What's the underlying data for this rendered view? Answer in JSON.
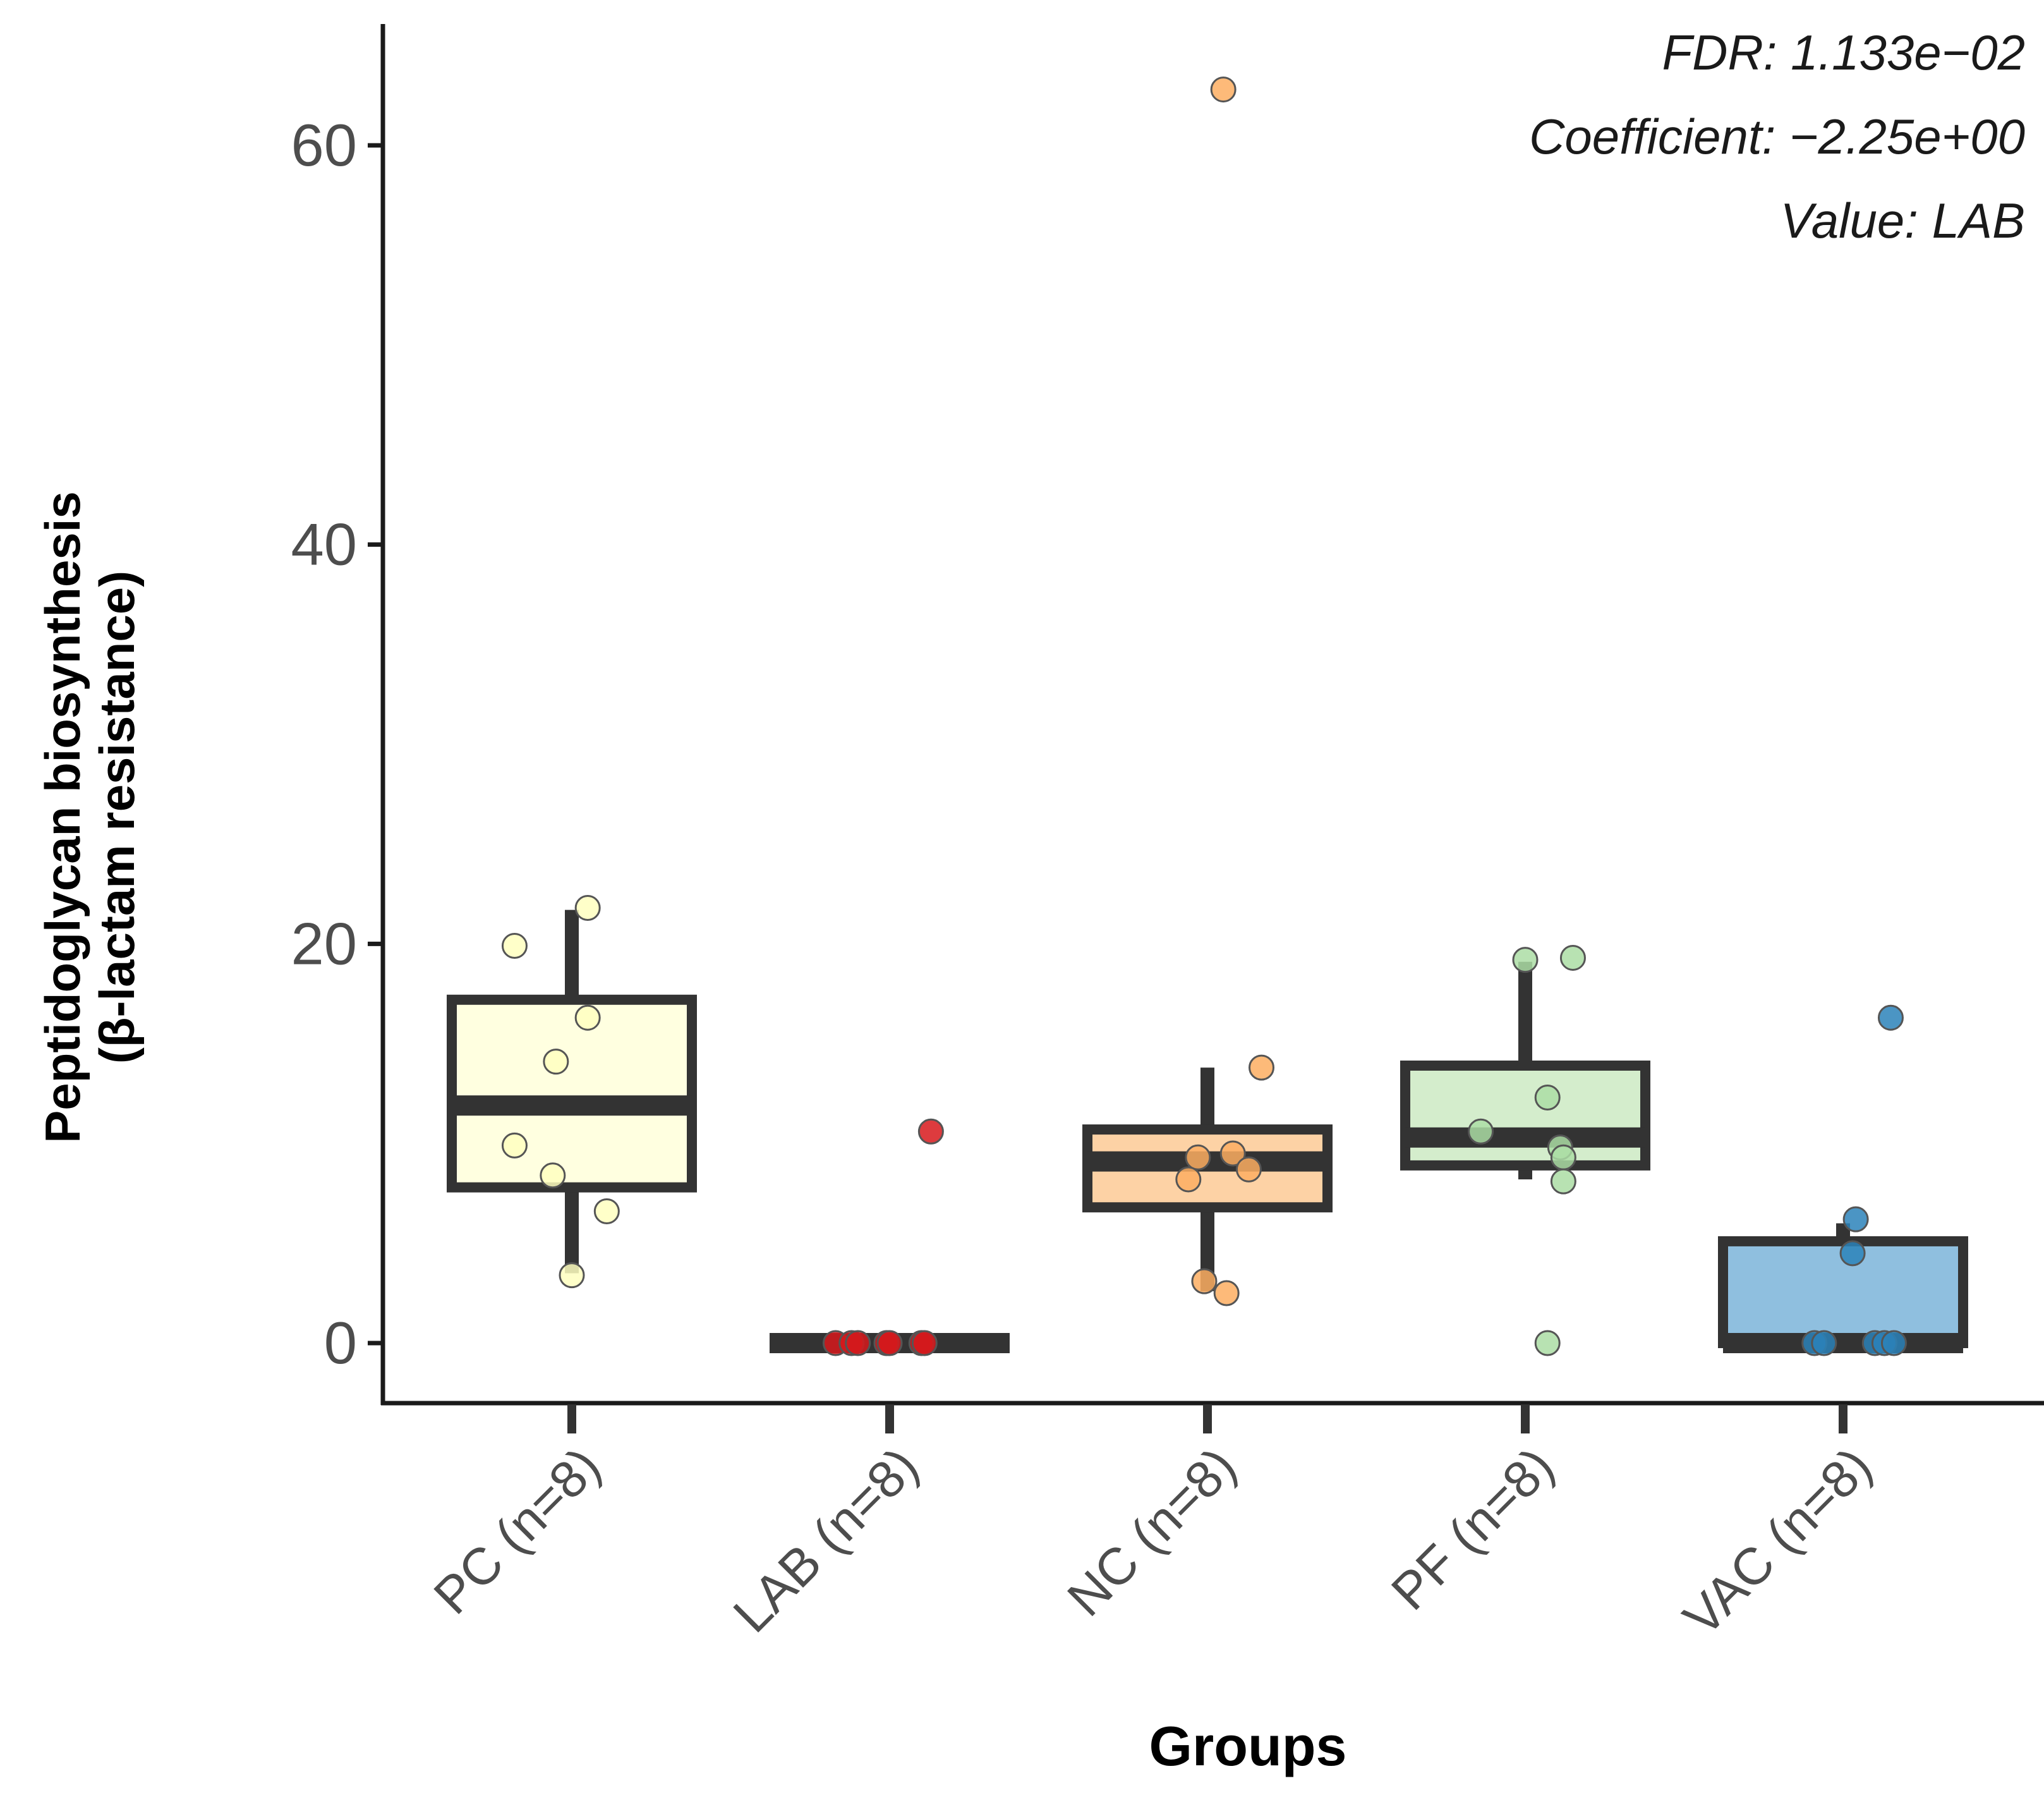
{
  "chart_data": {
    "type": "box",
    "title": "",
    "xlabel": "Groups",
    "ylabel_line1": "Peptidoglycan biosynthesis",
    "ylabel_line2": "(β-lactam resistance)",
    "ylim": [
      -3,
      66
    ],
    "yticks": [
      0,
      20,
      40,
      60
    ],
    "ytick_labels": [
      "0",
      "20",
      "40",
      "60"
    ],
    "categories": [
      "PC (n=8)",
      "LAB (n=8)",
      "NC (n=8)",
      "PF (n=8)",
      "VAC (n=8)"
    ],
    "annotations": {
      "fdr": "FDR: 1.133e−02",
      "coefficient": "Coefficient: −2.25e+00",
      "value": "Value: LAB"
    },
    "groups": [
      {
        "name": "PC (n=8)",
        "fill": "#ffffe0",
        "point_color": "#ffffbf",
        "q1": 7.8,
        "median": 11.9,
        "q3": 17.2,
        "whisker_low": 3.5,
        "whisker_high": 21.7,
        "points": [
          [
            -0.18,
            19.9
          ],
          [
            0.05,
            21.8
          ],
          [
            -0.05,
            14.1
          ],
          [
            0.05,
            16.3
          ],
          [
            -0.18,
            9.9
          ],
          [
            -0.06,
            8.4
          ],
          [
            0.11,
            6.6
          ],
          [
            0.0,
            3.4
          ]
        ]
      },
      {
        "name": "LAB (n=8)",
        "fill": "#d7191c",
        "point_color": "#d7191c",
        "q1": 0,
        "median": 0,
        "q3": 0,
        "whisker_low": 0,
        "whisker_high": 0,
        "points": [
          [
            0.13,
            10.6
          ],
          [
            -0.17,
            0
          ],
          [
            -0.12,
            0
          ],
          [
            -0.1,
            0
          ],
          [
            -0.01,
            0
          ],
          [
            0.0,
            0
          ],
          [
            0.1,
            0
          ],
          [
            0.11,
            0
          ]
        ]
      },
      {
        "name": "NC (n=8)",
        "fill": "#fdd2a5",
        "point_color": "#fdae61",
        "q1": 6.8,
        "median": 9.1,
        "q3": 10.7,
        "whisker_low": 2.6,
        "whisker_high": 13.8,
        "points": [
          [
            0.05,
            62.8
          ],
          [
            0.17,
            13.8
          ],
          [
            -0.03,
            9.3
          ],
          [
            0.08,
            9.5
          ],
          [
            0.13,
            8.7
          ],
          [
            -0.06,
            8.2
          ],
          [
            -0.01,
            3.1
          ],
          [
            0.06,
            2.5
          ]
        ]
      },
      {
        "name": "PF (n=8)",
        "fill": "#d4edcc",
        "point_color": "#abdda4",
        "q1": 8.9,
        "median": 10.3,
        "q3": 13.9,
        "whisker_low": 8.2,
        "whisker_high": 19.1,
        "points": [
          [
            0.0,
            19.2
          ],
          [
            0.15,
            19.3
          ],
          [
            0.07,
            12.3
          ],
          [
            -0.14,
            10.6
          ],
          [
            0.11,
            9.8
          ],
          [
            0.12,
            9.3
          ],
          [
            0.12,
            8.1
          ],
          [
            0.07,
            0
          ]
        ]
      },
      {
        "name": "VAC (n=8)",
        "fill": "#8fbfdf",
        "point_color": "#2b83ba",
        "q1": 0,
        "median": 0,
        "q3": 5.1,
        "whisker_low": 0,
        "whisker_high": 6.0,
        "points": [
          [
            0.15,
            16.3
          ],
          [
            0.04,
            6.2
          ],
          [
            0.03,
            4.5
          ],
          [
            -0.09,
            0
          ],
          [
            -0.06,
            0
          ],
          [
            0.1,
            0
          ],
          [
            0.13,
            0
          ],
          [
            0.16,
            0
          ]
        ]
      }
    ]
  }
}
